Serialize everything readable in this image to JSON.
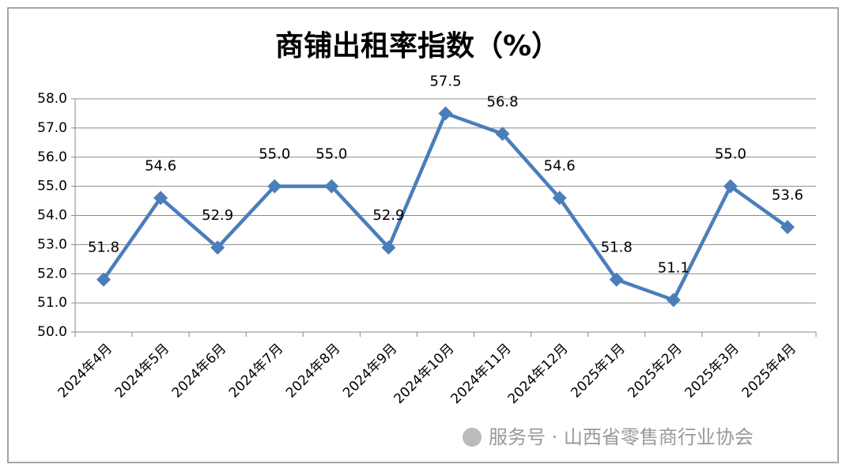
{
  "chart_data": {
    "type": "line",
    "title": "商铺出租率指数（%）",
    "categories": [
      "2024年4月",
      "2024年5月",
      "2024年6月",
      "2024年7月",
      "2024年8月",
      "2024年9月",
      "2024年10月",
      "2024年11月",
      "2024年12月",
      "2025年1月",
      "2025年2月",
      "2025年3月",
      "2025年4月"
    ],
    "values": [
      51.8,
      54.6,
      52.9,
      55,
      55,
      52.9,
      57.5,
      56.8,
      54.6,
      51.8,
      51.1,
      55,
      53.6
    ],
    "value_labels": [
      "51.8",
      "54.6",
      "52.9",
      "55.0",
      "55.0",
      "52.9",
      "57.5",
      "56.8",
      "54.6",
      "51.8",
      "51.1",
      "55.0",
      "53.6"
    ],
    "color": "#4a7ebb",
    "ylim": [
      50,
      58
    ],
    "yticks": [
      {
        "value": 50,
        "label": "50.0"
      },
      {
        "value": 51,
        "label": "51.0"
      },
      {
        "value": 52,
        "label": "52.0"
      },
      {
        "value": 53,
        "label": "53.0"
      },
      {
        "value": 54,
        "label": "54.0"
      },
      {
        "value": 55,
        "label": "55.0"
      },
      {
        "value": 56,
        "label": "56.0"
      },
      {
        "value": 57,
        "label": "57.0"
      },
      {
        "value": 58,
        "label": "58.0"
      }
    ],
    "grid": true
  },
  "watermark": "服务号 · 山西省零售商行业协会"
}
